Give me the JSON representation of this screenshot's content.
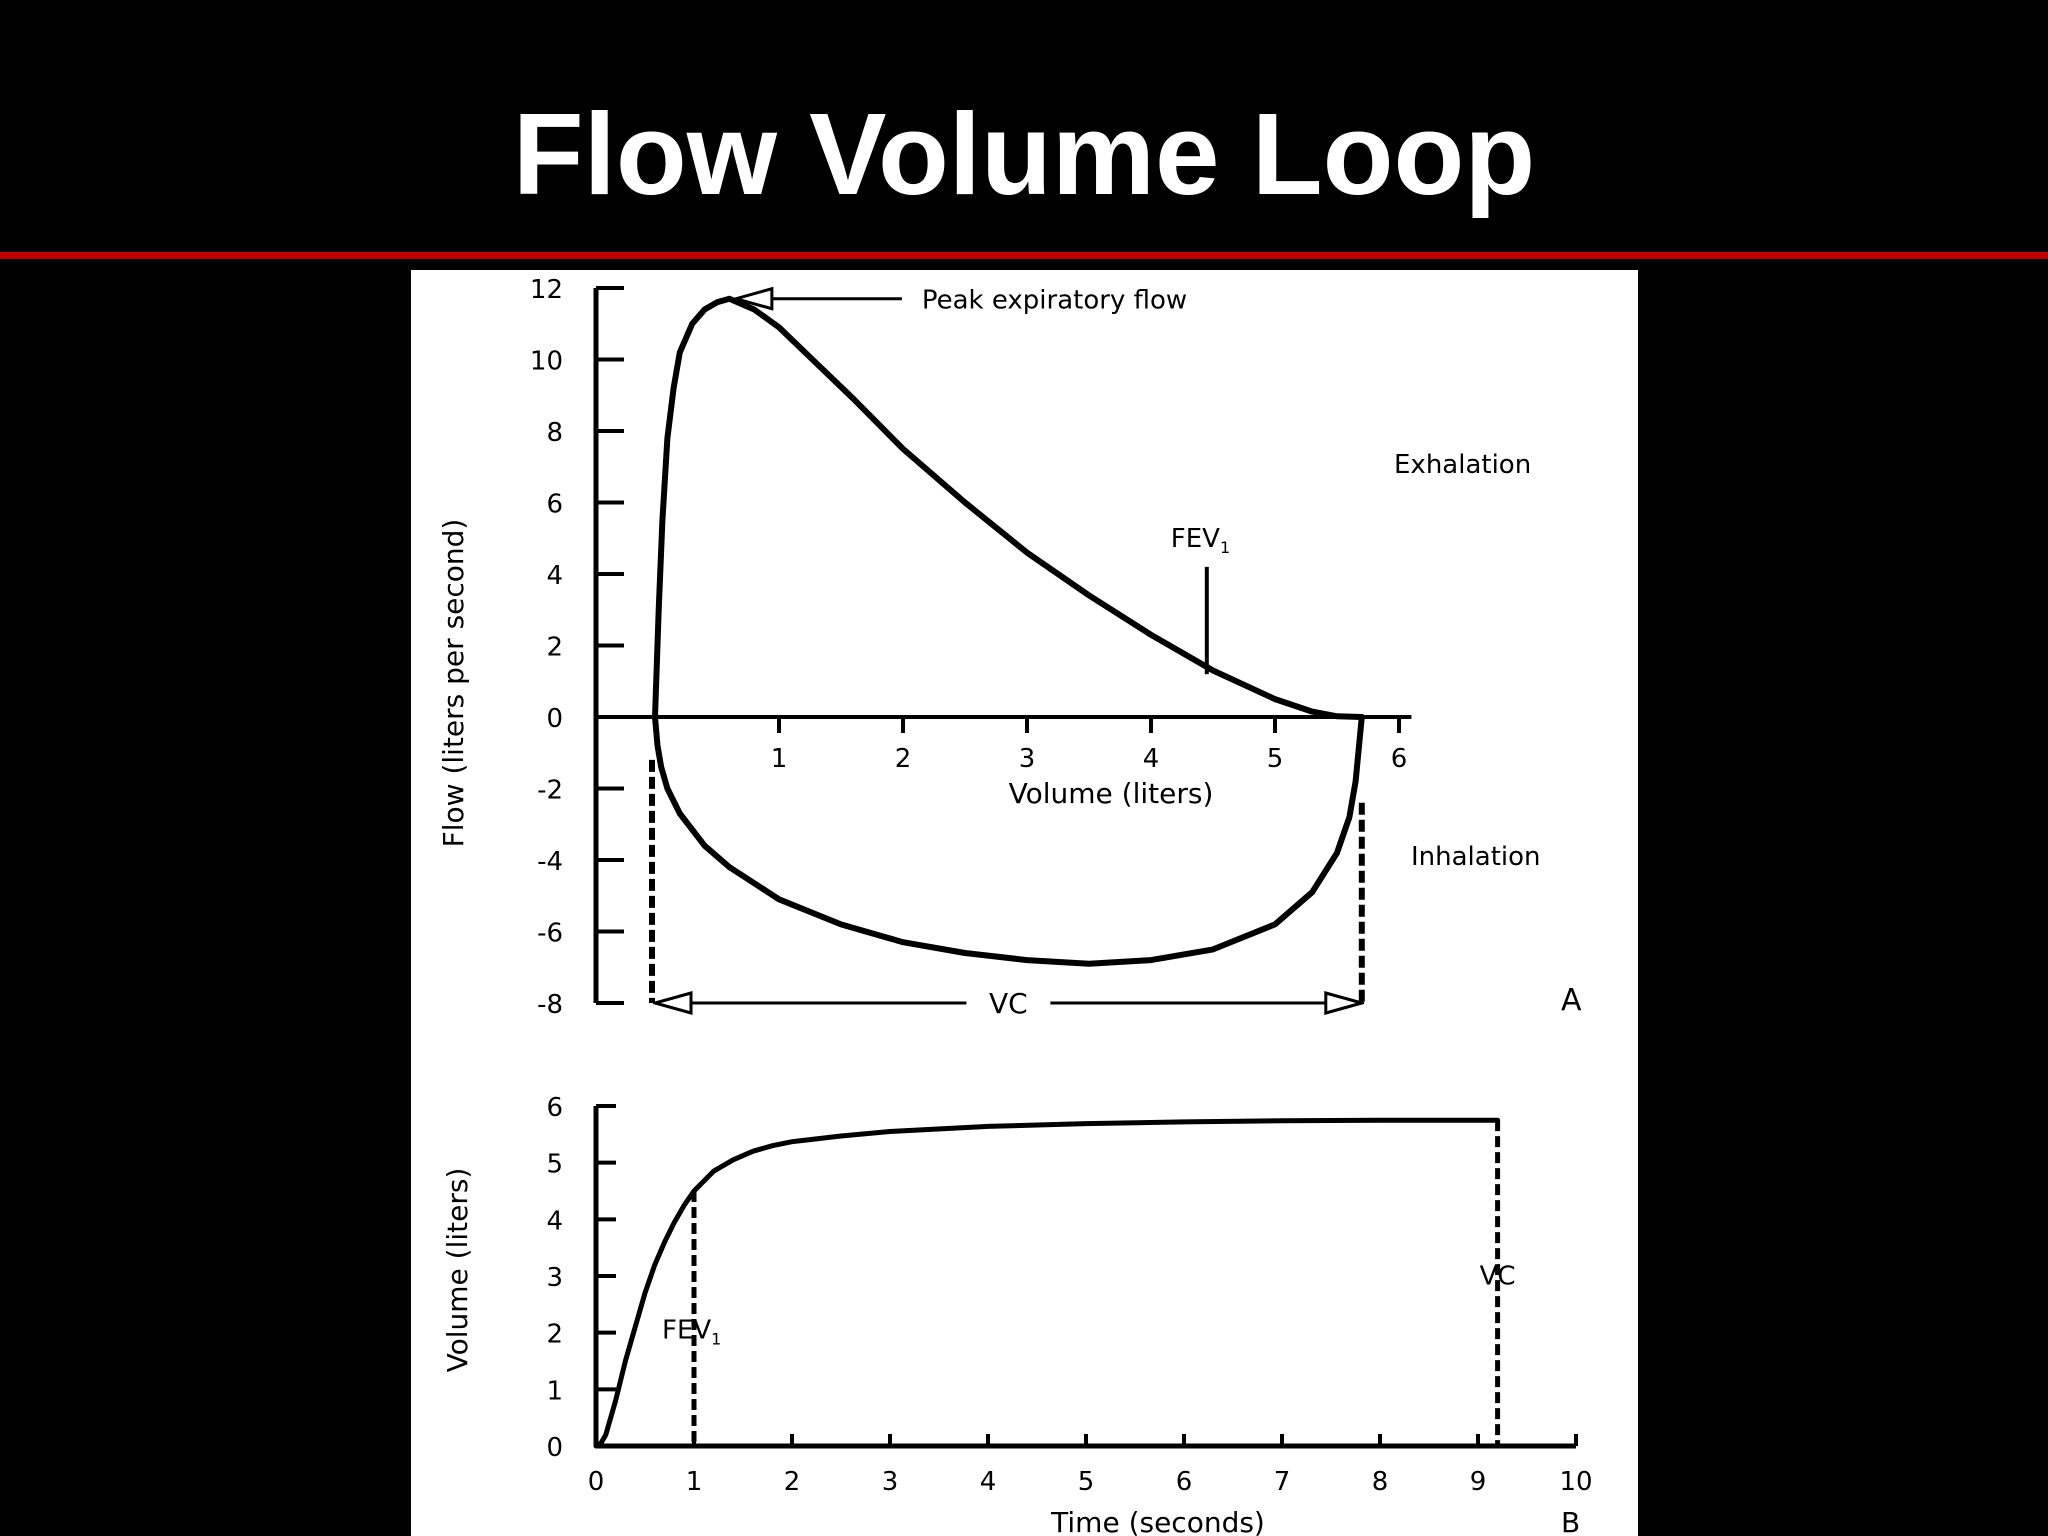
{
  "slide": {
    "title": "Flow Volume Loop",
    "background_color": "#000000",
    "title_color": "#ffffff",
    "rule_color": "#c00000",
    "figure_background": "#ffffff"
  },
  "chart_data": [
    {
      "panel_label": "A",
      "type": "line",
      "xlabel": "Volume (liters)",
      "ylabel": "Flow (liters per second)",
      "xlim": [
        0,
        6
      ],
      "ylim": [
        -8,
        12
      ],
      "x_ticks": [
        1,
        2,
        3,
        4,
        5,
        6
      ],
      "y_ticks": [
        12,
        10,
        8,
        6,
        4,
        2,
        0,
        -2,
        -4,
        -6,
        -8
      ],
      "grid": false,
      "series": [
        {
          "curve": "expiration",
          "x": [
            0.0,
            0.03,
            0.06,
            0.1,
            0.15,
            0.2,
            0.3,
            0.4,
            0.5,
            0.6,
            0.8,
            1.0,
            1.3,
            1.6,
            2.0,
            2.5,
            3.0,
            3.5,
            4.0,
            4.5,
            5.0,
            5.3,
            5.5,
            5.7
          ],
          "y": [
            0.0,
            3.0,
            5.5,
            7.8,
            9.2,
            10.2,
            11.0,
            11.4,
            11.6,
            11.7,
            11.4,
            10.9,
            9.9,
            8.9,
            7.5,
            6.0,
            4.6,
            3.4,
            2.3,
            1.3,
            0.5,
            0.15,
            0.02,
            0.0
          ]
        },
        {
          "curve": "inspiration",
          "x": [
            0.0,
            0.02,
            0.05,
            0.1,
            0.2,
            0.4,
            0.6,
            1.0,
            1.5,
            2.0,
            2.5,
            3.0,
            3.5,
            4.0,
            4.5,
            5.0,
            5.3,
            5.5,
            5.6,
            5.65,
            5.7
          ],
          "y": [
            0.0,
            -0.8,
            -1.4,
            -2.0,
            -2.7,
            -3.6,
            -4.2,
            -5.1,
            -5.8,
            -6.3,
            -6.6,
            -6.8,
            -6.9,
            -6.8,
            -6.5,
            -5.8,
            -4.9,
            -3.8,
            -2.8,
            -1.8,
            0.0
          ]
        }
      ],
      "annotations": {
        "peak": {
          "text": "Peak expiratory flow",
          "x": 0.62,
          "y": 11.7
        },
        "exhalation": "Exhalation",
        "inhalation": "Inhalation",
        "fev1": {
          "label": "FEV",
          "subscript": "1",
          "x": 4.45,
          "y": [
            1.2,
            4.2
          ]
        },
        "vc": {
          "text": "VC",
          "x_start": 0.0,
          "x_end": 5.7,
          "y": -8
        }
      }
    },
    {
      "panel_label": "B",
      "type": "line",
      "xlabel": "Time (seconds)",
      "ylabel": "Volume (liters)",
      "xlim": [
        0,
        10
      ],
      "ylim": [
        0,
        6
      ],
      "x_ticks": [
        0,
        1,
        2,
        3,
        4,
        5,
        6,
        7,
        8,
        9,
        10
      ],
      "y_ticks": [
        0,
        1,
        2,
        3,
        4,
        5,
        6
      ],
      "grid": false,
      "series": [
        {
          "curve": "volume-time",
          "x": [
            0.0,
            0.05,
            0.1,
            0.2,
            0.3,
            0.4,
            0.5,
            0.6,
            0.7,
            0.8,
            0.9,
            1.0,
            1.2,
            1.4,
            1.6,
            1.8,
            2.0,
            2.5,
            3.0,
            4.0,
            5.0,
            6.0,
            7.0,
            8.0,
            9.0,
            9.2
          ],
          "y": [
            0.0,
            0.05,
            0.2,
            0.8,
            1.5,
            2.1,
            2.7,
            3.2,
            3.6,
            3.95,
            4.25,
            4.5,
            4.85,
            5.05,
            5.2,
            5.3,
            5.37,
            5.47,
            5.55,
            5.64,
            5.69,
            5.72,
            5.74,
            5.75,
            5.75,
            5.75
          ]
        }
      ],
      "annotations": {
        "fev1": {
          "label": "FEV",
          "subscript": "1",
          "x": 1.0,
          "y": 4.5
        },
        "vc": {
          "text": "VC",
          "x": 9.2,
          "y": 5.75
        }
      }
    }
  ]
}
